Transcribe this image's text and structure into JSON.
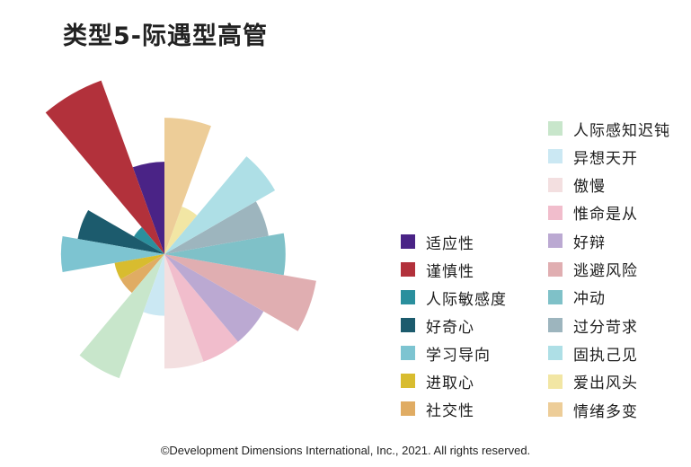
{
  "title": "类型5-际遇型高管",
  "copyright": "©Development Dimensions International, Inc., 2021. All rights reserved.",
  "chart_data": {
    "type": "polar-area",
    "title": "类型5-际遇型高管",
    "legend_position": "right",
    "value_scale": "radius, relative 0-10",
    "categories": [
      {
        "name": "适应性",
        "value": 4.2,
        "color": "#4a2386",
        "legend_column": "left"
      },
      {
        "name": "谨慎性",
        "value": 8.4,
        "color": "#b2313b",
        "legend_column": "left"
      },
      {
        "name": "人际敏感度",
        "value": 1.6,
        "color": "#2a8f9d",
        "legend_column": "left"
      },
      {
        "name": "好奇心",
        "value": 4.0,
        "color": "#1c5b6d",
        "legend_column": "left"
      },
      {
        "name": "学习导向",
        "value": 4.7,
        "color": "#7dc4d1",
        "legend_column": "left"
      },
      {
        "name": "进取心",
        "value": 2.3,
        "color": "#d8bc2f",
        "legend_column": "left"
      },
      {
        "name": "社交性",
        "value": 2.3,
        "color": "#e0ac63",
        "legend_column": "left"
      },
      {
        "name": "人际感知迟钝",
        "value": 6.0,
        "color": "#c8e6cb",
        "legend_column": "right"
      },
      {
        "name": "异想天开",
        "value": 2.8,
        "color": "#cbe8f3",
        "legend_column": "right"
      },
      {
        "name": "傲慢",
        "value": 5.2,
        "color": "#f3dfe0",
        "legend_column": "right"
      },
      {
        "name": "惟命是从",
        "value": 5.2,
        "color": "#f1bdcc",
        "legend_column": "right"
      },
      {
        "name": "好辩",
        "value": 5.2,
        "color": "#bba9d2",
        "legend_column": "right"
      },
      {
        "name": "逃避风险",
        "value": 7.0,
        "color": "#e0aeb1",
        "legend_column": "right"
      },
      {
        "name": "冲动",
        "value": 5.5,
        "color": "#7fc1c8",
        "legend_column": "right"
      },
      {
        "name": "过分苛求",
        "value": 4.8,
        "color": "#9db5be",
        "legend_column": "right"
      },
      {
        "name": "固执己见",
        "value": 5.8,
        "color": "#aedfe6",
        "legend_column": "right"
      },
      {
        "name": "爱出风头",
        "value": 2.3,
        "color": "#f2e6a4",
        "legend_column": "right"
      },
      {
        "name": "情绪多变",
        "value": 6.2,
        "color": "#edcd98",
        "legend_column": "right"
      }
    ]
  }
}
